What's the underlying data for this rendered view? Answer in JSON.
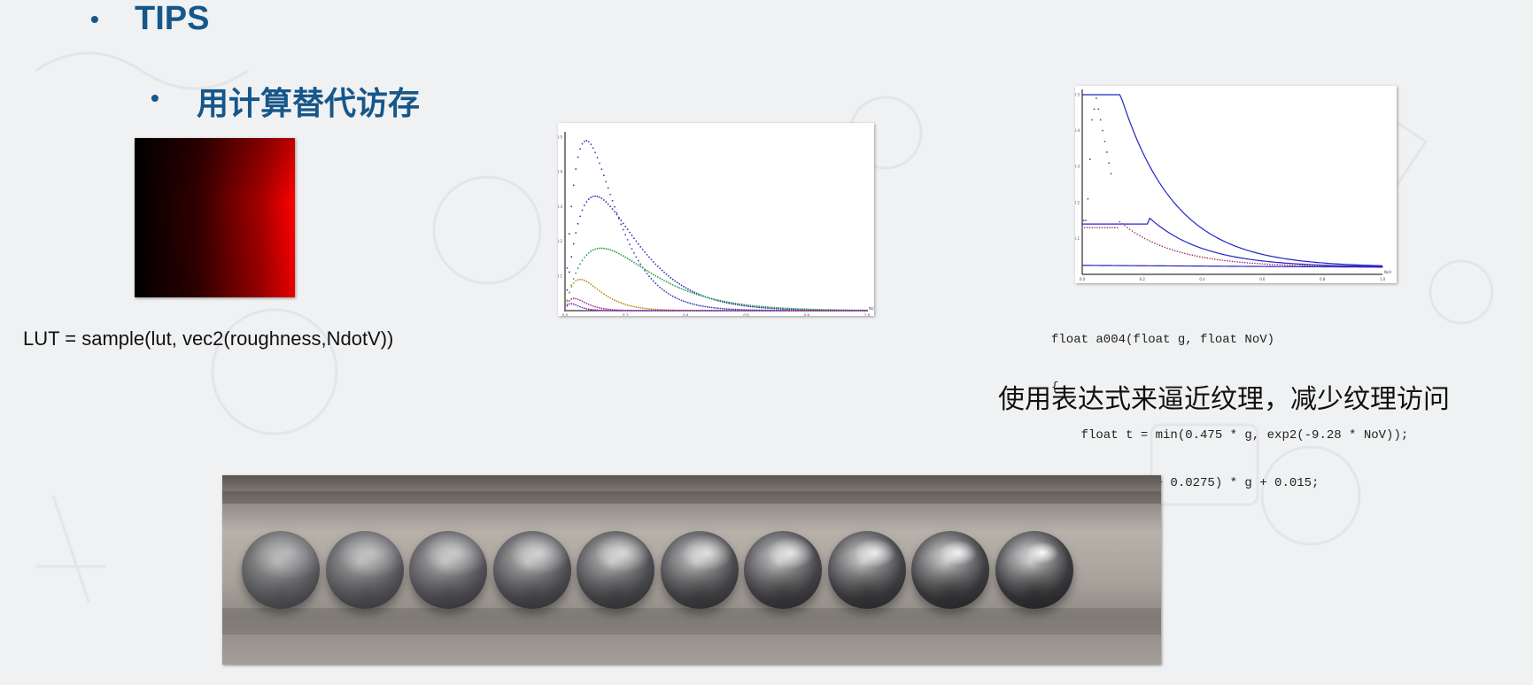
{
  "slide": {
    "heading": "TIPS",
    "subheading": "用计算替代访存",
    "bullet_glyph": "•"
  },
  "lut": {
    "caption": "LUT = sample(lut, vec2(roughness,NdotV))",
    "gradient_from": "#000000",
    "gradient_to": "#ff0000"
  },
  "code": {
    "lines": [
      "float a004(float g, float NoV)",
      "{",
      "    float t = min(0.475 * g, exp2(-9.28 * NoV));",
      "    return (t + 0.0275) * g + 0.015;",
      "}"
    ]
  },
  "caption_cn": "使用表达式来逼近纹理，减少纹理访问",
  "spheres": {
    "count": 10,
    "label": "sphere-roughness-row"
  },
  "colors": {
    "title": "#16578a",
    "background": "#f0f1f2"
  },
  "chart_data": [
    {
      "type": "scatter",
      "title": "",
      "xlabel": "NoV",
      "ylabel": "",
      "xlim": [
        0,
        1.0
      ],
      "ylim": [
        0,
        0.5
      ],
      "x_ticks": [
        "0.0",
        "0.2",
        "0.4",
        "0.6",
        "0.8",
        "1.0"
      ],
      "y_ticks": [
        "0.1",
        "0.2",
        "0.3",
        "0.4",
        "0.5"
      ],
      "series": [
        {
          "color": "#3b3bb0",
          "peak": 0.49,
          "peak_x": 0.07
        },
        {
          "color": "#2b2bc0",
          "peak": 0.33,
          "peak_x": 0.1
        },
        {
          "color": "#2a9a44",
          "peak": 0.18,
          "peak_x": 0.12
        },
        {
          "color": "#b88a1a",
          "peak": 0.09,
          "peak_x": 0.05
        },
        {
          "color": "#b02a8a",
          "peak": 0.035,
          "peak_x": 0.03
        },
        {
          "color": "#7a2ab0",
          "peak": 0.02,
          "peak_x": 0.02
        }
      ]
    },
    {
      "type": "line",
      "title": "",
      "xlabel": "NoV",
      "ylabel": "",
      "xlim": [
        0,
        1.0
      ],
      "ylim": [
        0,
        0.5
      ],
      "x_ticks": [
        "0.0",
        "0.2",
        "0.4",
        "0.6",
        "0.8",
        "1.0"
      ],
      "y_ticks": [
        "0.1",
        "0.2",
        "0.3",
        "0.4",
        "0.5"
      ],
      "series": [
        {
          "color": "#2323c8",
          "style": "line",
          "plateau": 0.5,
          "knee": 0.12
        },
        {
          "color": "#2323c8",
          "style": "line",
          "plateau": 0.14,
          "knee": 0.22
        },
        {
          "color": "#a0285a",
          "style": "dots",
          "plateau": 0.13,
          "knee": 0.12
        },
        {
          "color": "#2323c8",
          "style": "line",
          "plateau": 0.02,
          "knee": 0.0
        }
      ]
    }
  ]
}
